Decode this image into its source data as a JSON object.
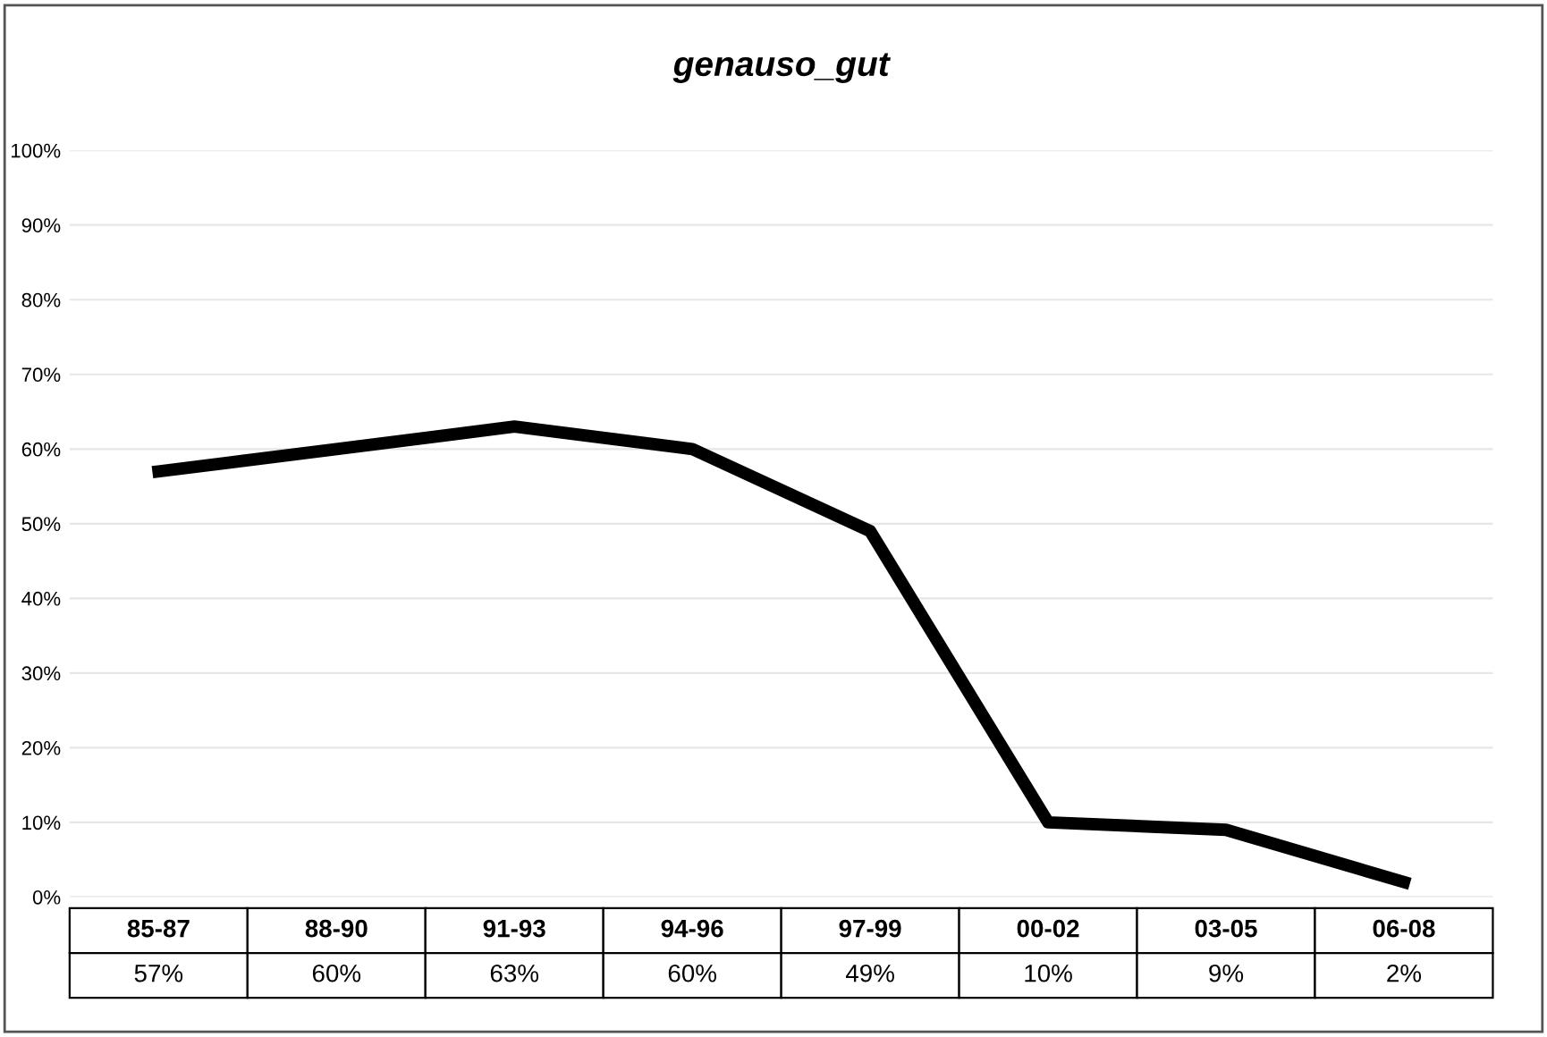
{
  "chart_data": {
    "type": "line",
    "title": "genauso_gut",
    "categories": [
      "85-87",
      "88-90",
      "91-93",
      "94-96",
      "97-99",
      "00-02",
      "03-05",
      "06-08"
    ],
    "series": [
      {
        "color": "#000000",
        "values": [
          57,
          60,
          63,
          60,
          49,
          10,
          9,
          2
        ],
        "value_labels": [
          "57%",
          "60%",
          "63%",
          "60%",
          "49%",
          "10%",
          "9%",
          "2%"
        ]
      }
    ],
    "ylim": [
      0,
      100
    ],
    "yticks": [
      {
        "value": 0,
        "label": "0%"
      },
      {
        "value": 10,
        "label": "10%"
      },
      {
        "value": 20,
        "label": "20%"
      },
      {
        "value": 30,
        "label": "30%"
      },
      {
        "value": 40,
        "label": "40%"
      },
      {
        "value": 50,
        "label": "50%"
      },
      {
        "value": 60,
        "label": "60%"
      },
      {
        "value": 70,
        "label": "70%"
      },
      {
        "value": 80,
        "label": "80%"
      },
      {
        "value": 90,
        "label": "90%"
      },
      {
        "value": 100,
        "label": "100%"
      }
    ],
    "grid": "y",
    "legend": false,
    "marker": "none",
    "line_style": "solid"
  }
}
